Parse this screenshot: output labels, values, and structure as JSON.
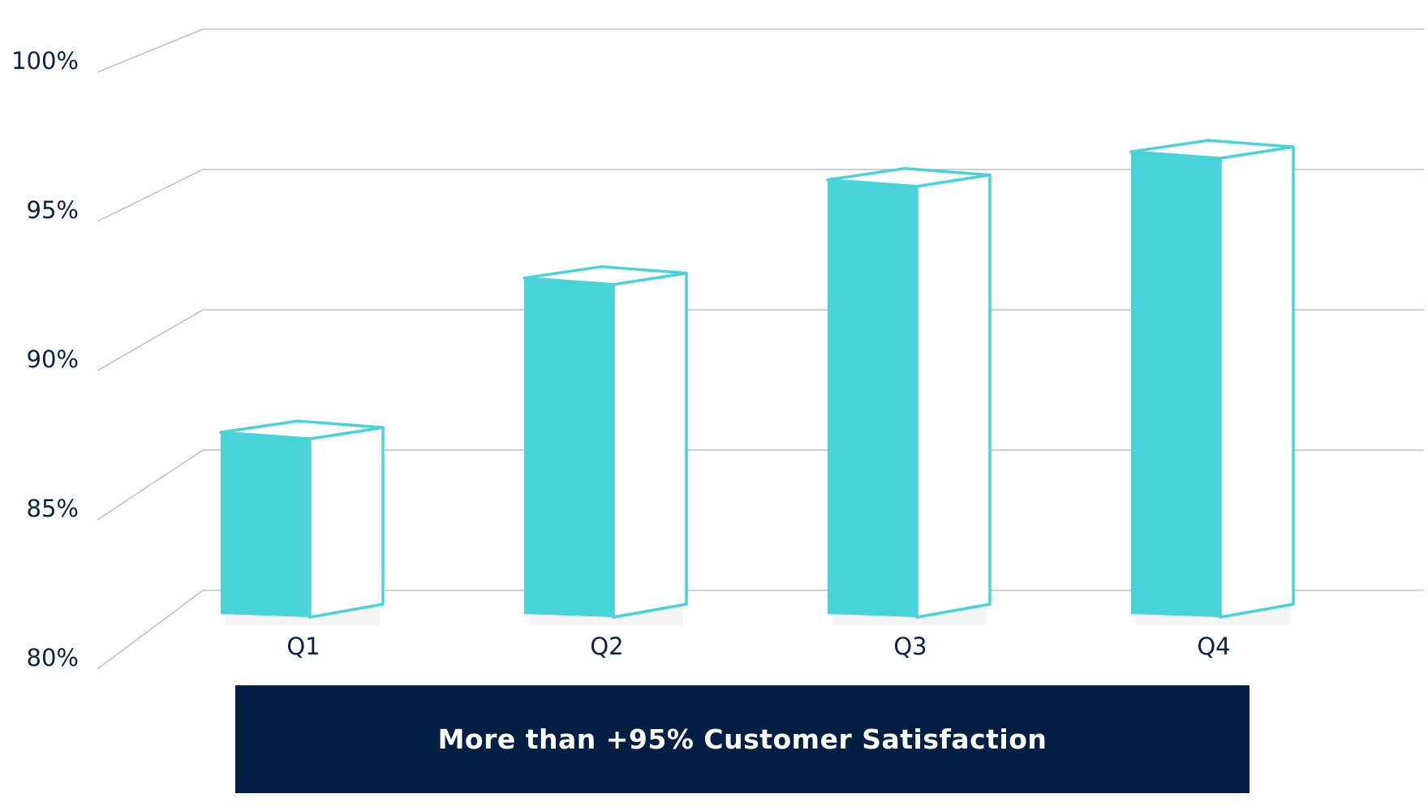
{
  "colors": {
    "bar_fill": "#48d3d8",
    "bar_outline": "#48d3d8",
    "grid": "#b8bfcc",
    "text": "#0d2247",
    "banner_bg": "#041f44",
    "banner_text": "#ffffff"
  },
  "banner": {
    "text": "More than +95% Customer Satisfaction"
  },
  "chart_data": {
    "type": "bar",
    "style": "3d",
    "categories": [
      "Q1",
      "Q2",
      "Q3",
      "Q4"
    ],
    "values": [
      86.5,
      92,
      95.5,
      96.5
    ],
    "y_ticks": [
      "80%",
      "85%",
      "90%",
      "95%",
      "100%"
    ],
    "ylim": [
      80,
      100
    ],
    "grid": true,
    "legend": "none",
    "title": "",
    "xlabel": "",
    "ylabel": ""
  }
}
